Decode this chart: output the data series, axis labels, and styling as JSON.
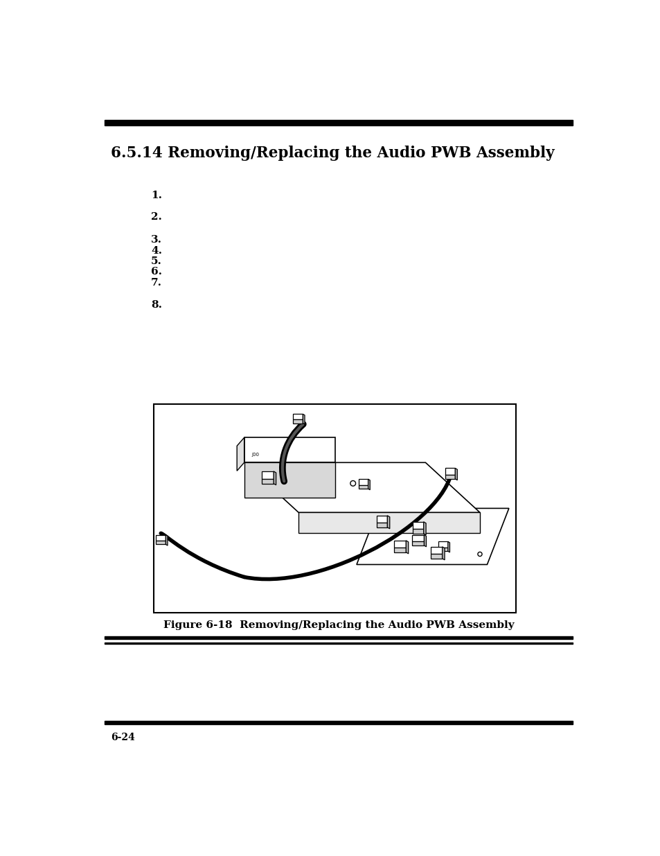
{
  "title": "6.5.14 Removing/Replacing the Audio PWB Assembly",
  "figure_caption": "Figure 6-18  Removing/Replacing the Audio PWB Assembly",
  "page_number": "6-24",
  "numbered_items": [
    "1.",
    "2.",
    "3.",
    "4.",
    "5.",
    "6.",
    "7.",
    "8."
  ],
  "bg_color": "#ffffff",
  "text_color": "#000000",
  "title_fontsize": 15.5,
  "item_fontsize": 11,
  "caption_fontsize": 11,
  "page_num_fontsize": 10,
  "top_bar_color": "#000000",
  "bottom_bar_color": "#000000"
}
